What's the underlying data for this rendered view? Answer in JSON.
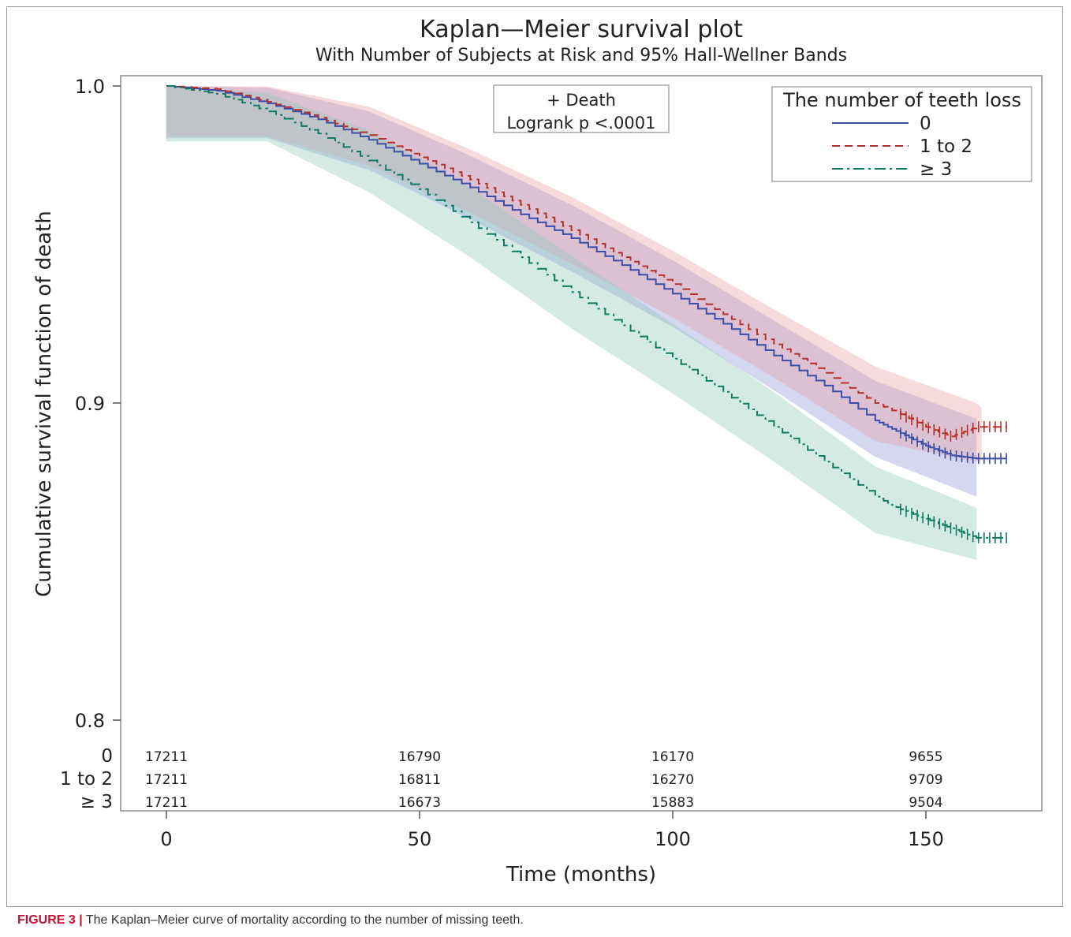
{
  "chart_data": {
    "type": "line",
    "title": "Kaplan—Meier survival plot",
    "subtitle": "With Number of Subjects at Risk and 95% Hall-Wellner Bands",
    "xlabel": "Time (months)",
    "ylabel": "Cumulative survival function of death",
    "xlim": [
      -8,
      173
    ],
    "ylim": [
      0.8,
      1.0
    ],
    "x_ticks": [
      0,
      50,
      100,
      150
    ],
    "y_ticks": [
      0.8,
      0.9,
      1.0
    ],
    "y_tick_labels": [
      "0.8",
      "0.9",
      "1.0"
    ],
    "grid": false,
    "legend": {
      "title": "The number of teeth loss",
      "placement": "top-right"
    },
    "inset": {
      "line1": "+ Death",
      "line2": "Logrank p <.0001"
    },
    "series": [
      {
        "name": "0",
        "color": "#3b4fa8",
        "band_color": "#8f96d6",
        "dash": "solid",
        "points": [
          [
            0,
            1.0
          ],
          [
            10,
            0.9985
          ],
          [
            20,
            0.9945
          ],
          [
            30,
            0.9895
          ],
          [
            40,
            0.983
          ],
          [
            50,
            0.9755
          ],
          [
            60,
            0.968
          ],
          [
            70,
            0.9595
          ],
          [
            80,
            0.952
          ],
          [
            90,
            0.9435
          ],
          [
            100,
            0.9345
          ],
          [
            110,
            0.925
          ],
          [
            120,
            0.915
          ],
          [
            130,
            0.9055
          ],
          [
            140,
            0.8945
          ],
          [
            145,
            0.8905
          ],
          [
            150,
            0.8865
          ],
          [
            155,
            0.8835
          ],
          [
            160,
            0.8825
          ],
          [
            166,
            0.8825
          ]
        ],
        "band_upper": [
          [
            0,
            1.0
          ],
          [
            20,
            0.9995
          ],
          [
            40,
            0.992
          ],
          [
            60,
            0.978
          ],
          [
            80,
            0.9625
          ],
          [
            100,
            0.945
          ],
          [
            120,
            0.926
          ],
          [
            140,
            0.907
          ],
          [
            160,
            0.895
          ]
        ],
        "band_lower": [
          [
            0,
            0.9835
          ],
          [
            20,
            0.9835
          ],
          [
            40,
            0.9735
          ],
          [
            60,
            0.958
          ],
          [
            80,
            0.9415
          ],
          [
            100,
            0.924
          ],
          [
            120,
            0.904
          ],
          [
            140,
            0.883
          ],
          [
            160,
            0.8705
          ]
        ],
        "censor_start": 145,
        "censor_end": 166
      },
      {
        "name": "1 to 2",
        "color": "#b5322c",
        "band_color": "#e79fa3",
        "dash": "10,6",
        "points": [
          [
            0,
            1.0
          ],
          [
            10,
            0.999
          ],
          [
            20,
            0.995
          ],
          [
            30,
            0.99
          ],
          [
            40,
            0.9845
          ],
          [
            50,
            0.9775
          ],
          [
            60,
            0.9705
          ],
          [
            70,
            0.9625
          ],
          [
            80,
            0.9545
          ],
          [
            90,
            0.946
          ],
          [
            100,
            0.9375
          ],
          [
            110,
            0.928
          ],
          [
            120,
            0.9185
          ],
          [
            130,
            0.9095
          ],
          [
            140,
            0.9
          ],
          [
            145,
            0.8965
          ],
          [
            150,
            0.8925
          ],
          [
            155,
            0.8895
          ],
          [
            160,
            0.8925
          ],
          [
            166,
            0.8925
          ]
        ],
        "band_upper": [
          [
            0,
            1.0
          ],
          [
            20,
            0.9998
          ],
          [
            40,
            0.9935
          ],
          [
            60,
            0.98
          ],
          [
            80,
            0.965
          ],
          [
            100,
            0.948
          ],
          [
            120,
            0.9295
          ],
          [
            140,
            0.9115
          ],
          [
            160,
            0.9
          ],
          [
            161,
            0.8985
          ]
        ],
        "band_lower": [
          [
            0,
            0.984
          ],
          [
            20,
            0.984
          ],
          [
            40,
            0.975
          ],
          [
            60,
            0.96
          ],
          [
            80,
            0.944
          ],
          [
            100,
            0.927
          ],
          [
            120,
            0.908
          ],
          [
            140,
            0.888
          ],
          [
            160,
            0.8815
          ],
          [
            161,
            0.8815
          ]
        ],
        "censor_start": 145,
        "censor_end": 166
      },
      {
        "name": "≥ 3",
        "color": "#117a65",
        "band_color": "#8fcab8",
        "dash": "14,5,3,5",
        "points": [
          [
            0,
            1.0
          ],
          [
            10,
            0.9975
          ],
          [
            20,
            0.992
          ],
          [
            30,
            0.985
          ],
          [
            40,
            0.9765
          ],
          [
            50,
            0.9675
          ],
          [
            60,
            0.957
          ],
          [
            70,
            0.946
          ],
          [
            80,
            0.935
          ],
          [
            90,
            0.9245
          ],
          [
            100,
            0.914
          ],
          [
            110,
            0.9035
          ],
          [
            120,
            0.8925
          ],
          [
            130,
            0.8815
          ],
          [
            140,
            0.8705
          ],
          [
            145,
            0.8665
          ],
          [
            150,
            0.8635
          ],
          [
            155,
            0.8605
          ],
          [
            160,
            0.8575
          ],
          [
            166,
            0.8575
          ]
        ],
        "band_upper": [
          [
            0,
            1.0
          ],
          [
            20,
            0.9978
          ],
          [
            40,
            0.986
          ],
          [
            60,
            0.968
          ],
          [
            80,
            0.9465
          ],
          [
            100,
            0.925
          ],
          [
            120,
            0.9035
          ],
          [
            140,
            0.88
          ],
          [
            160,
            0.867
          ]
        ],
        "band_lower": [
          [
            0,
            0.9825
          ],
          [
            20,
            0.9825
          ],
          [
            40,
            0.9665
          ],
          [
            60,
            0.946
          ],
          [
            80,
            0.9235
          ],
          [
            100,
            0.903
          ],
          [
            120,
            0.8815
          ],
          [
            140,
            0.859
          ],
          [
            160,
            0.8505
          ]
        ],
        "censor_start": 145,
        "censor_end": 166
      }
    ],
    "at_risk": {
      "times": [
        0,
        50,
        100,
        150
      ],
      "rows": [
        {
          "label": "0",
          "counts": [
            "17211",
            "16790",
            "16170",
            "9655"
          ]
        },
        {
          "label": "1 to 2",
          "counts": [
            "17211",
            "16811",
            "16270",
            "9709"
          ]
        },
        {
          "label": "≥ 3",
          "counts": [
            "17211",
            "16673",
            "15883",
            "9504"
          ]
        }
      ]
    }
  },
  "caption": {
    "label": "FIGURE 3 |",
    "text": " The Kaplan–Meier curve of mortality according to the number of missing teeth."
  }
}
